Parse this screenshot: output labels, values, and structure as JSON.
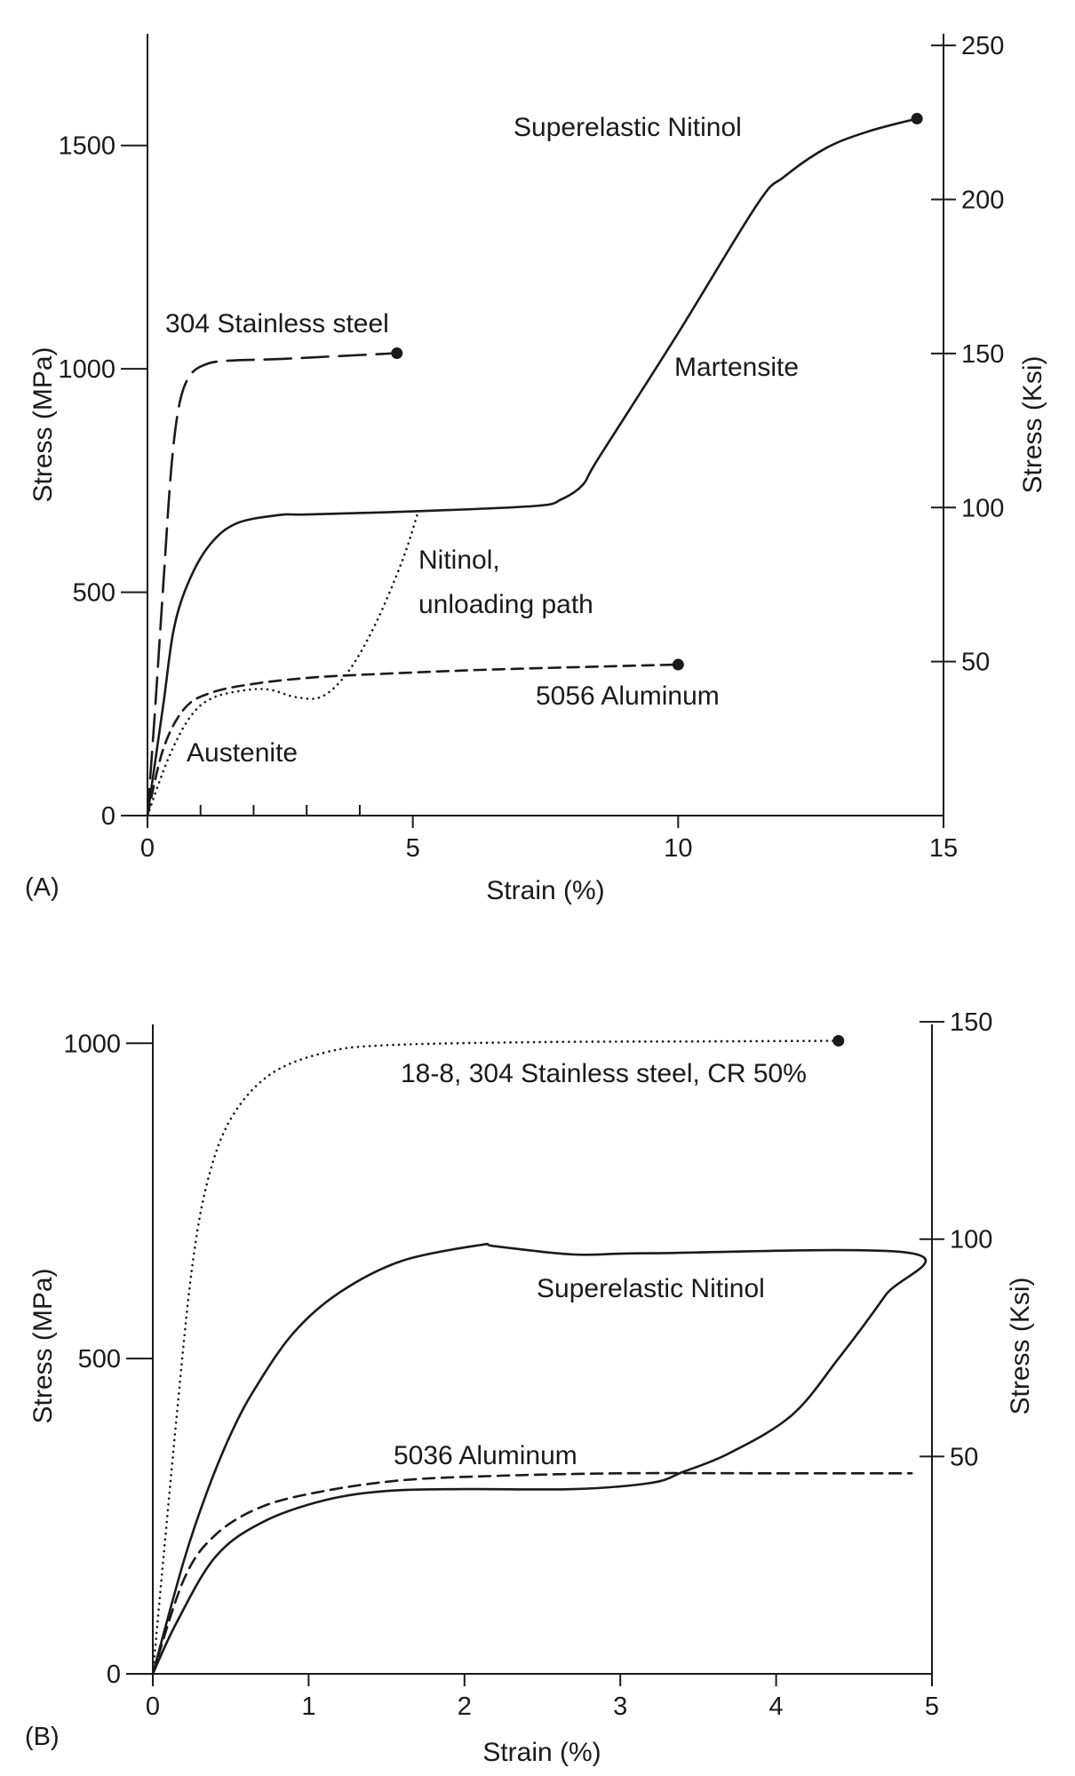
{
  "chart_data": [
    {
      "type": "line",
      "panel_label": "(A)",
      "xlabel": "Strain (%)",
      "ylabel": "Stress (MPa)",
      "ylabel_right": "Stress (Ksi)",
      "xlim": [
        0,
        15
      ],
      "ylim": [
        0,
        1750
      ],
      "ylim_right": [
        0,
        253.8
      ],
      "x_ticks": [
        0,
        5,
        10,
        15
      ],
      "x_minor_ticks": [
        1,
        2,
        3,
        4
      ],
      "y_ticks": [
        0,
        500,
        1000,
        1500
      ],
      "y_right_ticks": [
        50,
        100,
        150,
        200,
        250
      ],
      "grid": false,
      "series": [
        {
          "name": "304 Stainless steel",
          "style": "longdash",
          "end_marker": true,
          "points": [
            [
              0,
              0
            ],
            [
              0.15,
              250
            ],
            [
              0.3,
              520
            ],
            [
              0.45,
              780
            ],
            [
              0.6,
              920
            ],
            [
              0.8,
              985
            ],
            [
              1.1,
              1010
            ],
            [
              1.5,
              1018
            ],
            [
              2.5,
              1022
            ],
            [
              3.5,
              1028
            ],
            [
              4.7,
              1035
            ]
          ]
        },
        {
          "name": "Superelastic Nitinol",
          "style": "solid",
          "end_marker": true,
          "points": [
            [
              0,
              0
            ],
            [
              0.3,
              250
            ],
            [
              0.5,
              420
            ],
            [
              0.8,
              530
            ],
            [
              1.2,
              610
            ],
            [
              1.7,
              655
            ],
            [
              2.5,
              673
            ],
            [
              3,
              674
            ],
            [
              5,
              681
            ],
            [
              7.3,
              693
            ],
            [
              7.8,
              708
            ],
            [
              8.2,
              740
            ],
            [
              8.5,
              800
            ],
            [
              10,
              1080
            ],
            [
              11.5,
              1370
            ],
            [
              12,
              1430
            ],
            [
              12.8,
              1495
            ],
            [
              13.6,
              1532
            ],
            [
              14.5,
              1560
            ]
          ]
        },
        {
          "name": "Nitinol, unloading path",
          "style": "dotted",
          "end_marker": false,
          "points": [
            [
              0,
              0
            ],
            [
              0.4,
              130
            ],
            [
              0.8,
              220
            ],
            [
              1.2,
              262
            ],
            [
              1.8,
              280
            ],
            [
              2.3,
              282
            ],
            [
              2.8,
              265
            ],
            [
              3.3,
              267
            ],
            [
              3.8,
              325
            ],
            [
              4.3,
              430
            ],
            [
              4.8,
              570
            ],
            [
              5.1,
              680
            ]
          ]
        },
        {
          "name": "5056 Aluminum",
          "style": "dashed",
          "end_marker": true,
          "points": [
            [
              0,
              0
            ],
            [
              0.3,
              150
            ],
            [
              0.7,
              240
            ],
            [
              1.2,
              275
            ],
            [
              2,
              295
            ],
            [
              3,
              308
            ],
            [
              4,
              315
            ],
            [
              6,
              325
            ],
            [
              8,
              332
            ],
            [
              10,
              338
            ]
          ]
        }
      ],
      "annotations": [
        "Martensite",
        "Austenite"
      ]
    },
    {
      "type": "line",
      "panel_label": "(B)",
      "xlabel": "Strain (%)",
      "ylabel": "Stress (MPa)",
      "ylabel_right": "Stress (Ksi)",
      "xlim": [
        0,
        5
      ],
      "ylim": [
        0,
        1030
      ],
      "ylim_right": [
        0,
        149.4
      ],
      "x_ticks": [
        0,
        1,
        2,
        3,
        4,
        5
      ],
      "y_ticks": [
        0,
        500,
        1000
      ],
      "y_right_ticks": [
        50,
        100,
        150
      ],
      "grid": false,
      "series": [
        {
          "name": "18-8, 304 Stainless steel, CR 50%",
          "style": "dotted",
          "end_marker": true,
          "points": [
            [
              0,
              0
            ],
            [
              0.15,
              400
            ],
            [
              0.25,
              640
            ],
            [
              0.35,
              780
            ],
            [
              0.5,
              880
            ],
            [
              0.75,
              950
            ],
            [
              1.1,
              985
            ],
            [
              1.5,
              997
            ],
            [
              2.5,
              1002
            ],
            [
              3.5,
              1003
            ],
            [
              4.4,
              1004
            ]
          ]
        },
        {
          "name": "Superelastic Nitinol",
          "style": "solid",
          "end_marker": false,
          "points": [
            [
              0,
              0
            ],
            [
              0.2,
              180
            ],
            [
              0.35,
              290
            ],
            [
              0.5,
              380
            ],
            [
              0.65,
              450
            ],
            [
              0.9,
              540
            ],
            [
              1.2,
              605
            ],
            [
              1.6,
              655
            ],
            [
              2.1,
              680
            ],
            [
              2.2,
              678
            ],
            [
              2.7,
              665
            ],
            [
              3.2,
              667
            ],
            [
              4.87,
              667
            ],
            [
              4.7,
              600
            ],
            [
              4.4,
              500
            ],
            [
              4.1,
              410
            ],
            [
              3.7,
              350
            ],
            [
              3.4,
              320
            ],
            [
              3.2,
              303
            ],
            [
              2.7,
              293
            ],
            [
              2,
              293
            ],
            [
              1.5,
              290
            ],
            [
              1.1,
              275
            ],
            [
              0.7,
              240
            ],
            [
              0.4,
              185
            ],
            [
              0.15,
              80
            ],
            [
              0,
              0
            ]
          ]
        },
        {
          "name": "5036 Aluminum",
          "style": "dashed",
          "end_marker": false,
          "points": [
            [
              0,
              0
            ],
            [
              0.2,
              150
            ],
            [
              0.4,
              220
            ],
            [
              0.7,
              265
            ],
            [
              1.1,
              290
            ],
            [
              1.6,
              307
            ],
            [
              2.2,
              314
            ],
            [
              3,
              318
            ],
            [
              4,
              318
            ],
            [
              4.87,
              318
            ]
          ]
        }
      ]
    }
  ]
}
